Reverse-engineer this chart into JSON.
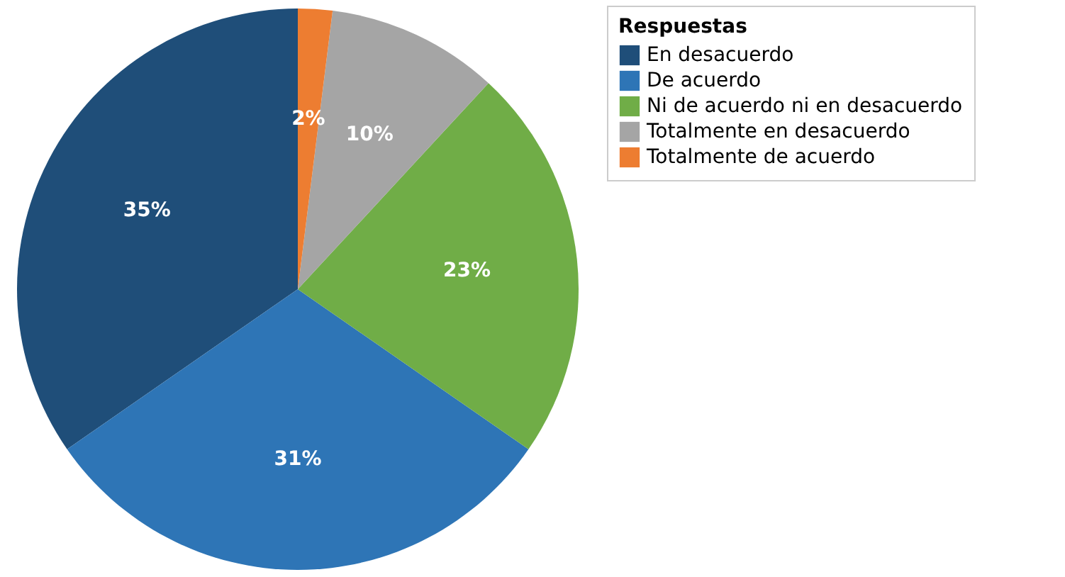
{
  "chart_data": {
    "type": "pie",
    "legend_title": "Respuestas",
    "categories": [
      "En desacuerdo",
      "De acuerdo",
      "Ni de acuerdo ni en desacuerdo",
      "Totalmente en desacuerdo",
      "Totalmente de acuerdo"
    ],
    "values": [
      35,
      31,
      23,
      10,
      2
    ],
    "colors": [
      "#1f4e79",
      "#2e75b6",
      "#70ad47",
      "#a5a5a5",
      "#ed7d31"
    ],
    "value_labels": [
      "35%",
      "31%",
      "23%",
      "10%",
      "2%"
    ],
    "legend": "right"
  }
}
